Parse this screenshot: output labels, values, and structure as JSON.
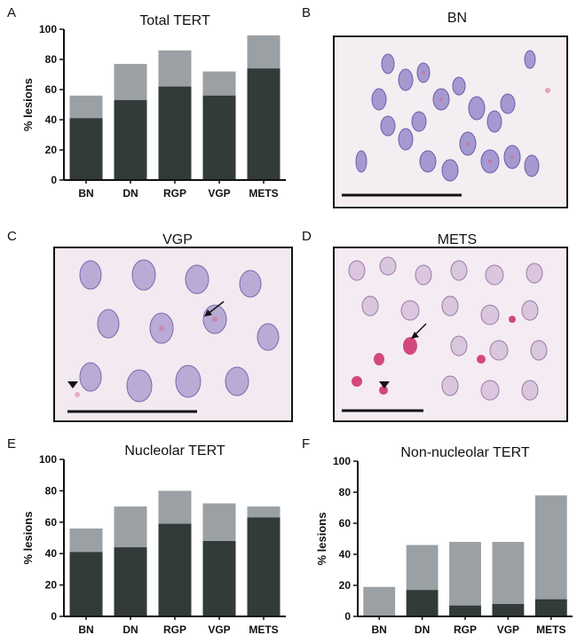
{
  "panel_labels": {
    "A": "A",
    "B": "B",
    "C": "C",
    "D": "D",
    "E": "E",
    "F": "F"
  },
  "micrographs": {
    "B": {
      "title": "BN"
    },
    "C": {
      "title": "VGP"
    },
    "D": {
      "title": "METS"
    }
  },
  "colors": {
    "dark": "#333a3a",
    "light": "#9aa0a4",
    "axis": "#111111"
  },
  "chart_data": [
    {
      "id": "A",
      "type": "bar",
      "title": "Total TERT",
      "ylabel": "% lesions",
      "ylim": [
        0,
        100
      ],
      "yticks": [
        0,
        20,
        40,
        60,
        80,
        100
      ],
      "categories": [
        "BN",
        "DN",
        "RGP",
        "VGP",
        "METS"
      ],
      "series": [
        {
          "name": "dark",
          "values": [
            41,
            53,
            62,
            56,
            74
          ]
        },
        {
          "name": "light",
          "values": [
            56,
            77,
            86,
            72,
            96
          ]
        }
      ]
    },
    {
      "id": "E",
      "type": "bar",
      "title": "Nucleolar TERT",
      "ylabel": "% lesions",
      "ylim": [
        0,
        100
      ],
      "yticks": [
        0,
        20,
        40,
        60,
        80,
        100
      ],
      "categories": [
        "BN",
        "DN",
        "RGP",
        "VGP",
        "METS"
      ],
      "series": [
        {
          "name": "dark",
          "values": [
            41,
            44,
            59,
            48,
            63
          ]
        },
        {
          "name": "light",
          "values": [
            56,
            70,
            80,
            72,
            70
          ]
        }
      ]
    },
    {
      "id": "F",
      "type": "bar",
      "title": "Non-nucleolar TERT",
      "ylabel": "% lesions",
      "ylim": [
        0,
        100
      ],
      "yticks": [
        0,
        20,
        40,
        60,
        80,
        100
      ],
      "categories": [
        "BN",
        "DN",
        "RGP",
        "VGP",
        "METS"
      ],
      "series": [
        {
          "name": "dark",
          "values": [
            0,
            17,
            7,
            8,
            11
          ]
        },
        {
          "name": "light",
          "values": [
            19,
            46,
            48,
            48,
            78
          ]
        }
      ]
    }
  ]
}
